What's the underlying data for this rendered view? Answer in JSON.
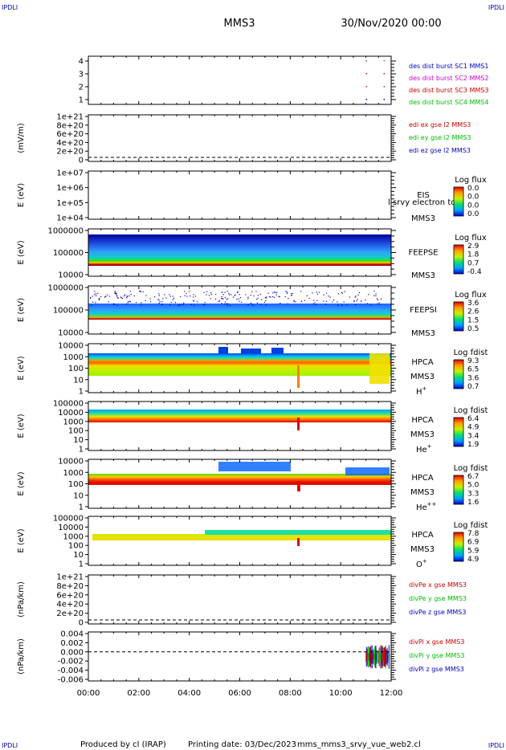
{
  "header": {
    "corner_left": "IPDLI",
    "corner_right": "IPDLI",
    "mission": "MMS3",
    "datetime": "30/Nov/2020 00:00"
  },
  "footer": {
    "corner_left": "IPDLI",
    "corner_right": "IPDLI",
    "produced_by": "Produced by cl (IRAP)",
    "printing_date": "Printing date: 03/Dec/2023",
    "script_name": "mms_mms3_srvy_vue_web2.cl"
  },
  "chart_data": {
    "type": "multi-panel time series / spectrogram",
    "x_tick_labels": [
      "00:00",
      "02:00",
      "04:00",
      "06:00",
      "08:00",
      "10:00",
      "12:00"
    ],
    "x_range_hours": [
      0,
      12
    ],
    "panels": [
      {
        "id": "burst",
        "type": "scatter",
        "yticks": [
          "1",
          "2",
          "3",
          "4"
        ],
        "legend": [
          {
            "label": "des dist burst SC1 MMS1",
            "color": "#0000cc"
          },
          {
            "label": "des dist burst SC2 MMS2",
            "color": "#cc00cc"
          },
          {
            "label": "des dist burst SC3 MMS3",
            "color": "#cc0000"
          },
          {
            "label": "des dist burst SC4 MMS4",
            "color": "#00bb00"
          }
        ],
        "points": [
          {
            "x": 11.0,
            "y": 4,
            "series": 3
          },
          {
            "x": 11.7,
            "y": 4,
            "series": 3
          },
          {
            "x": 11.0,
            "y": 3,
            "series": 2
          },
          {
            "x": 11.7,
            "y": 3,
            "series": 2
          },
          {
            "x": 11.0,
            "y": 2,
            "series": 1
          },
          {
            "x": 11.7,
            "y": 2,
            "series": 1
          },
          {
            "x": 11.0,
            "y": 1,
            "series": 0
          },
          {
            "x": 11.7,
            "y": 1,
            "series": 0
          }
        ]
      },
      {
        "id": "edi",
        "type": "line",
        "ylabel": "(mV/m)",
        "yticks": [
          "1e+21",
          "8e+20",
          "6e+20",
          "4e+20",
          "2e+20",
          "0"
        ],
        "legend": [
          {
            "label": "edi ex gse l2 MMS3",
            "color": "#cc0000"
          },
          {
            "label": "edi ey gse l2 MMS3",
            "color": "#00bb00"
          },
          {
            "label": "edi ez gse l2 MMS3",
            "color": "#0000cc"
          }
        ]
      },
      {
        "id": "eis",
        "type": "heatmap",
        "ylabel": "E (eV)",
        "yticks": [
          "1e+07",
          "1e+06",
          "1e+05",
          "1e+04"
        ],
        "side_label_1": "EIS",
        "side_label_2": "MMS3",
        "side_overlay": "l srvy electron to",
        "colorbar_title": "Log flux",
        "colorbar_ticks": [
          "0.0",
          "0.0",
          "0.0",
          "0.0"
        ]
      },
      {
        "id": "feepse",
        "type": "heatmap",
        "ylabel": "E (eV)",
        "yticks": [
          "1000000",
          "100000",
          "10000"
        ],
        "side_label_1": "FEEPSE",
        "side_label_2": "MMS3",
        "colorbar_title": "Log flux",
        "colorbar_ticks": [
          "2.9",
          "1.8",
          "0.7",
          "-0.4"
        ]
      },
      {
        "id": "feepsi",
        "type": "heatmap",
        "ylabel": "E (eV)",
        "yticks": [
          "1000000",
          "100000",
          "10000"
        ],
        "side_label_1": "FEEPSI",
        "side_label_2": "MMS3",
        "colorbar_title": "Log flux",
        "colorbar_ticks": [
          "3.6",
          "2.6",
          "1.5",
          "0.5"
        ]
      },
      {
        "id": "hpca_h",
        "type": "heatmap",
        "ylabel": "E (eV)",
        "yticks": [
          "10000",
          "1000",
          "100",
          "10",
          "1"
        ],
        "side_label_1": "HPCA",
        "side_label_2": "MMS3",
        "species": "H",
        "species_sup": "+",
        "colorbar_title": "Log fdist",
        "colorbar_ticks": [
          "9.3",
          "6.5",
          "3.6",
          "0.7"
        ]
      },
      {
        "id": "hpca_he",
        "type": "heatmap",
        "ylabel": "E (eV)",
        "yticks": [
          "100000",
          "10000",
          "1000",
          "100",
          "10",
          "1"
        ],
        "side_label_1": "HPCA",
        "side_label_2": "MMS3",
        "species": "He",
        "species_sup": "+",
        "colorbar_title": "Log fdist",
        "colorbar_ticks": [
          "6.4",
          "4.9",
          "3.4",
          "1.9"
        ]
      },
      {
        "id": "hpca_hepp",
        "type": "heatmap",
        "ylabel": "E (eV)",
        "yticks": [
          "10000",
          "1000",
          "100",
          "10",
          "1"
        ],
        "side_label_1": "HPCA",
        "side_label_2": "MMS3",
        "species": "He",
        "species_sup": "++",
        "colorbar_title": "Log fdist",
        "colorbar_ticks": [
          "6.7",
          "5.0",
          "3.3",
          "1.6"
        ]
      },
      {
        "id": "hpca_o",
        "type": "heatmap",
        "ylabel": "E (eV)",
        "yticks": [
          "100000",
          "10000",
          "1000",
          "100",
          "10",
          "1"
        ],
        "side_label_1": "HPCA",
        "side_label_2": "MMS3",
        "species": "O",
        "species_sup": "+",
        "colorbar_title": "Log fdist",
        "colorbar_ticks": [
          "7.8",
          "6.9",
          "5.9",
          "4.9"
        ]
      },
      {
        "id": "divpe",
        "type": "line",
        "ylabel": "(nPa/km)",
        "yticks": [
          "1e+21",
          "8e+20",
          "6e+20",
          "4e+20",
          "2e+20",
          "0"
        ],
        "legend": [
          {
            "label": "divPe x gse MMS3",
            "color": "#cc0000"
          },
          {
            "label": "divPe y gse MMS3",
            "color": "#00bb00"
          },
          {
            "label": "divPe z gse MMS3",
            "color": "#0000cc"
          }
        ]
      },
      {
        "id": "divpi",
        "type": "line",
        "ylabel": "(nPa/km)",
        "yticks": [
          "0.004",
          "0.002",
          "0.000",
          "-0.002",
          "-0.004",
          "-0.006"
        ],
        "legend": [
          {
            "label": "divPi x gse MMS3",
            "color": "#cc0000"
          },
          {
            "label": "divPi y gse MMS3",
            "color": "#00bb00"
          },
          {
            "label": "divPi z gse MMS3",
            "color": "#0000cc"
          }
        ]
      }
    ]
  }
}
